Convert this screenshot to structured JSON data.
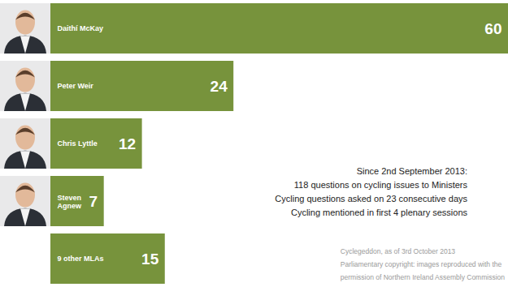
{
  "chart_data": {
    "type": "bar",
    "orientation": "horizontal",
    "categories": [
      "Daithí McKay",
      "Peter Weir",
      "Chris Lyttle",
      "Steven Agnew",
      "9 other MLAs"
    ],
    "values": [
      60,
      24,
      12,
      7,
      15
    ],
    "color": "#77933c",
    "xlim": [
      0,
      60
    ],
    "data_labels": true,
    "tick_labels": false,
    "annotations": [
      "Since 2nd September 2013:",
      "118 questions on cycling issues to Ministers",
      "Cycling questions asked on 23 consecutive days",
      "Cycling mentioned in first 4 plenary sessions"
    ],
    "caption": [
      "Cyclegeddon, as of 3rd October 2013",
      "Parliamentary copyright: images reproduced with the",
      "permission of Northern Ireland Assembly Commission"
    ]
  }
}
